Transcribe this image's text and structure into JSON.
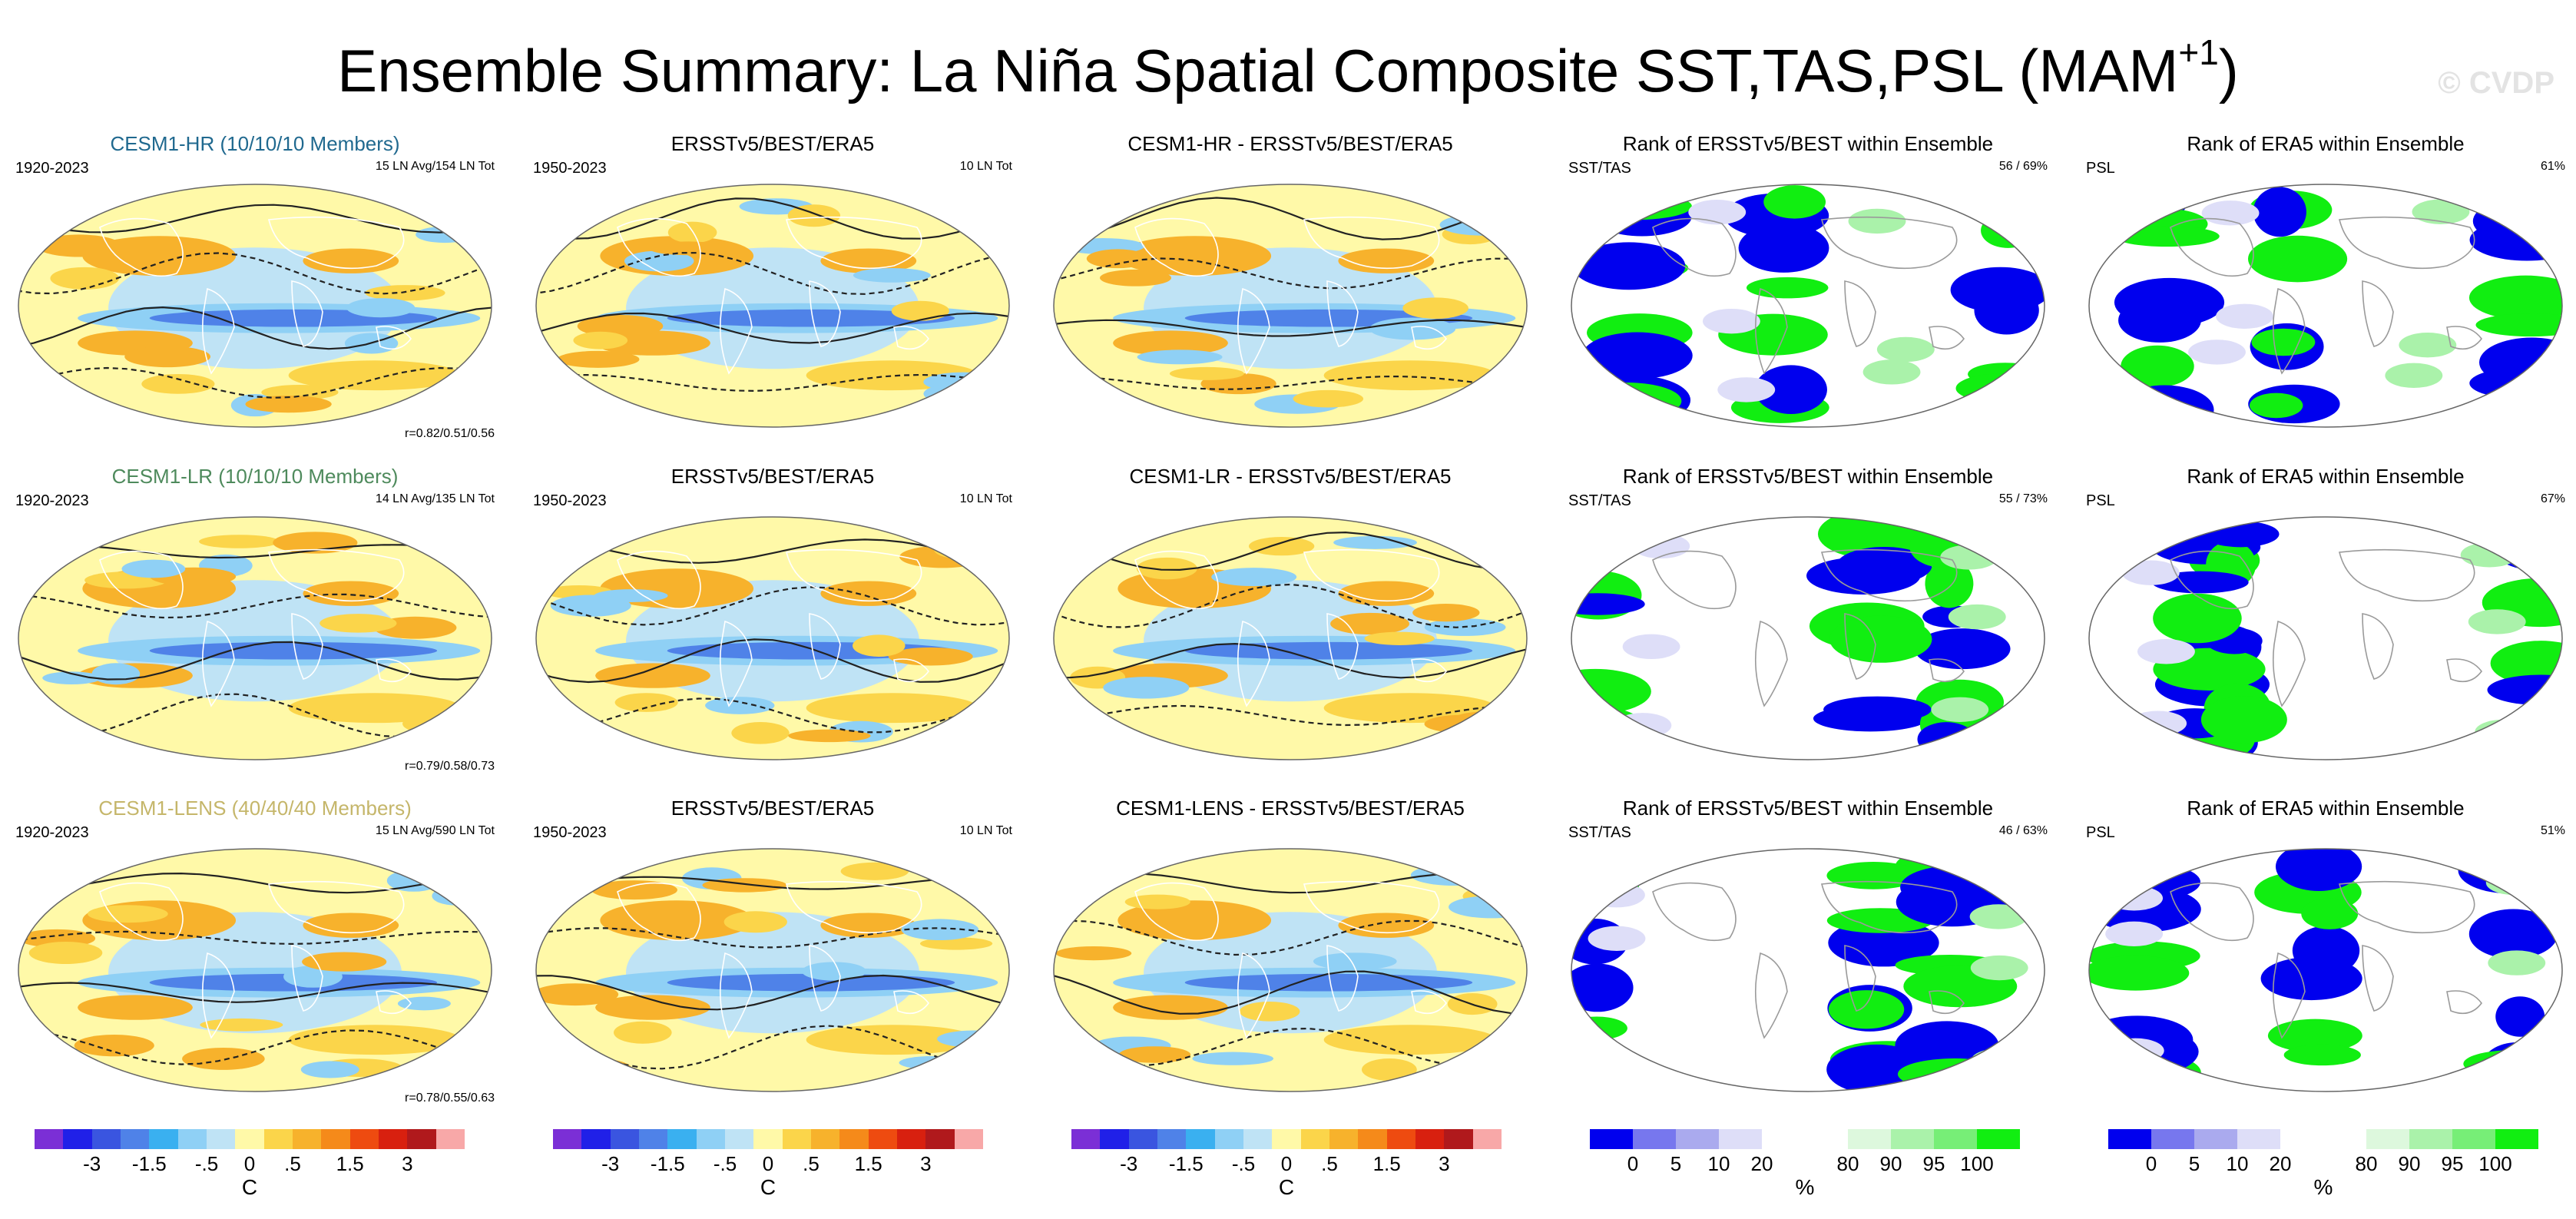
{
  "title": {
    "main": "Ensemble Summary: La Niña Spatial Composite SST,TAS,PSL (MAM",
    "sup": "+1",
    "close": ")"
  },
  "watermark": "© CVDP",
  "rows": [
    {
      "model": "CESM1-HR (10/10/10 Members)",
      "model_years": "1920-2023",
      "model_events": "15 LN Avg/154 LN Tot",
      "model_corr": "r=0.82/0.51/0.56",
      "obs_title": "ERSSTv5/BEST/ERA5",
      "obs_years": "1950-2023",
      "obs_events": "10 LN Tot",
      "diff_title": "CESM1-HR - ERSSTv5/BEST/ERA5",
      "rank1_title": "Rank of ERSSTv5/BEST within Ensemble",
      "rank1_vars": "SST/TAS",
      "rank1_stat": "56 /  69%",
      "rank2_title": "Rank of ERA5 within Ensemble",
      "rank2_vars": "PSL",
      "rank2_stat": "61%"
    },
    {
      "model": "CESM1-LR (10/10/10 Members)",
      "model_years": "1920-2023",
      "model_events": "14 LN Avg/135 LN Tot",
      "model_corr": "r=0.79/0.58/0.73",
      "obs_title": "ERSSTv5/BEST/ERA5",
      "obs_years": "1950-2023",
      "obs_events": "10 LN Tot",
      "diff_title": "CESM1-LR - ERSSTv5/BEST/ERA5",
      "rank1_title": "Rank of ERSSTv5/BEST within Ensemble",
      "rank1_vars": "SST/TAS",
      "rank1_stat": "55 /  73%",
      "rank2_title": "Rank of ERA5 within Ensemble",
      "rank2_vars": "PSL",
      "rank2_stat": "67%"
    },
    {
      "model": "CESM1-LENS (40/40/40 Members)",
      "model_years": "1920-2023",
      "model_events": "15 LN Avg/590 LN Tot",
      "model_corr": "r=0.78/0.55/0.63",
      "obs_title": "ERSSTv5/BEST/ERA5",
      "obs_years": "1950-2023",
      "obs_events": "10 LN Tot",
      "diff_title": "CESM1-LENS - ERSSTv5/BEST/ERA5",
      "rank1_title": "Rank of ERSSTv5/BEST within Ensemble",
      "rank1_vars": "SST/TAS",
      "rank1_stat": "46 /  63%",
      "rank2_title": "Rank of ERA5 within Ensemble",
      "rank2_vars": "PSL",
      "rank2_stat": "51%"
    }
  ],
  "colorbars": {
    "temperature": {
      "colors": [
        "#7b2fd6",
        "#2020e8",
        "#3a55e0",
        "#4f82e8",
        "#3ab0f0",
        "#8fd0f5",
        "#bfe3f5",
        "#fff9a8",
        "#fbd54a",
        "#f7b22c",
        "#f58a1a",
        "#ee4b10",
        "#d8200f",
        "#b0191c",
        "#f8a8a8"
      ],
      "ticks": [
        "-3",
        "-1.5",
        "-.5",
        "0",
        ".5",
        "1.5",
        "3"
      ],
      "unit": "C"
    },
    "rank": {
      "colors": [
        "#0000ee",
        "#7777ee",
        "#aaaaee",
        "#dedef8",
        "#ffffff",
        "#ffffff",
        "#ddf8dd",
        "#aaf2aa",
        "#77ee77",
        "#11ee11"
      ],
      "ticks": [
        "0",
        "5",
        "10",
        "20",
        "80",
        "90",
        "95",
        "100"
      ],
      "unit": "%"
    }
  }
}
